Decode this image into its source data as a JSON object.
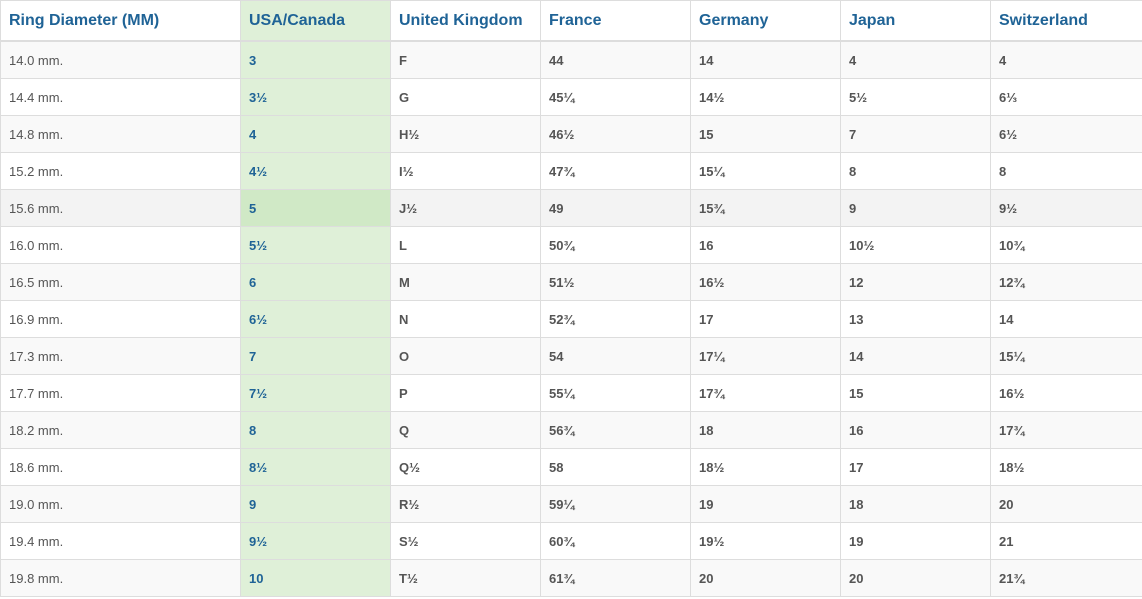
{
  "table": {
    "headers": [
      "Ring Diameter (MM)",
      "USA/Canada",
      "United Kingdom",
      "France",
      "Germany",
      "Japan",
      "Switzerland"
    ],
    "highlighted_column": "USA/Canada",
    "hovered_row": "15.6 mm.",
    "colors": {
      "header_text": "#1f6396",
      "highlight_column": "#dff0d8",
      "body_text": "#555555"
    },
    "rows": [
      [
        "14.0 mm.",
        "3",
        "F",
        "44",
        "14",
        "4",
        "4"
      ],
      [
        "14.4 mm.",
        "3½",
        "G",
        "45¼",
        "14½",
        "5½",
        "6⅓"
      ],
      [
        "14.8 mm.",
        "4",
        "H½",
        "46½",
        "15",
        "7",
        "6½"
      ],
      [
        "15.2 mm.",
        "4½",
        "I½",
        "47¾",
        "15¼",
        "8",
        "8"
      ],
      [
        "15.6 mm.",
        "5",
        "J½",
        "49",
        "15¾",
        "9",
        "9½"
      ],
      [
        "16.0 mm.",
        "5½",
        "L",
        "50¾",
        "16",
        "10½",
        "10¾"
      ],
      [
        "16.5 mm.",
        "6",
        "M",
        "51½",
        "16½",
        "12",
        "12¾"
      ],
      [
        "16.9 mm.",
        "6½",
        "N",
        "52¾",
        "17",
        "13",
        "14"
      ],
      [
        "17.3 mm.",
        "7",
        "O",
        "54",
        "17¼",
        "14",
        "15¼"
      ],
      [
        "17.7 mm.",
        "7½",
        "P",
        "55¼",
        "17¾",
        "15",
        "16½"
      ],
      [
        "18.2 mm.",
        "8",
        "Q",
        "56¾",
        "18",
        "16",
        "17¾"
      ],
      [
        "18.6 mm.",
        "8½",
        "Q½",
        "58",
        "18½",
        "17",
        "18½"
      ],
      [
        "19.0 mm.",
        "9",
        "R½",
        "59¼",
        "19",
        "18",
        "20"
      ],
      [
        "19.4 mm.",
        "9½",
        "S½",
        "60¾",
        "19½",
        "19",
        "21"
      ],
      [
        "19.8 mm.",
        "10",
        "T½",
        "61¾",
        "20",
        "20",
        "21¾"
      ]
    ]
  }
}
